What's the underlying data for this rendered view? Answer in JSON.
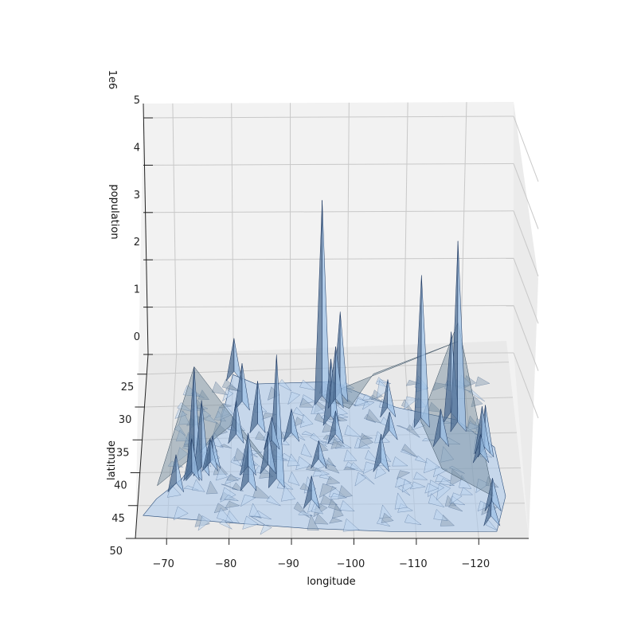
{
  "chart_data": {
    "type": "surface3d",
    "title": "",
    "xlabel": "longitude",
    "ylabel": "latitude",
    "zlabel": "population",
    "z_offset_label": "1e6",
    "xlim": [
      -65,
      -128
    ],
    "ylim": [
      22,
      50
    ],
    "zlim": [
      0,
      5.2
    ],
    "x_ticks": [
      -70,
      -80,
      -90,
      -100,
      -110,
      -120
    ],
    "y_ticks": [
      25,
      30,
      35,
      40,
      45,
      50
    ],
    "z_ticks": [
      0,
      1,
      2,
      3,
      4,
      5
    ],
    "x_tick_labels": [
      "−70",
      "−80",
      "−90",
      "−100",
      "−110",
      "−120"
    ],
    "y_tick_labels": [
      "25",
      "30",
      "35",
      "40",
      "45",
      "50"
    ],
    "z_tick_labels": [
      "0",
      "1",
      "2",
      "3",
      "4",
      "5"
    ],
    "grid": true,
    "surface_color": "#a9c8ec",
    "edge_color": "#2c4f7c",
    "pane_color": "#f2f2f2",
    "peaks": [
      {
        "lon": -74.0,
        "lat": 40.7,
        "z": 2.3
      },
      {
        "lon": -75.2,
        "lat": 40.0,
        "z": 1.5
      },
      {
        "lon": -71.1,
        "lat": 42.4,
        "z": 0.7
      },
      {
        "lon": -77.0,
        "lat": 38.9,
        "z": 0.6
      },
      {
        "lon": -80.2,
        "lat": 25.8,
        "z": 0.8
      },
      {
        "lon": -84.4,
        "lat": 33.7,
        "z": 1.0
      },
      {
        "lon": -87.6,
        "lat": 41.9,
        "z": 2.7
      },
      {
        "lon": -83.0,
        "lat": 42.3,
        "z": 0.9
      },
      {
        "lon": -95.4,
        "lat": 29.8,
        "z": 4.2
      },
      {
        "lon": -96.8,
        "lat": 32.8,
        "z": 1.3
      },
      {
        "lon": -98.5,
        "lat": 29.4,
        "z": 1.8
      },
      {
        "lon": -97.7,
        "lat": 30.3,
        "z": 1.2
      },
      {
        "lon": -93.3,
        "lat": 45.0,
        "z": 0.6
      },
      {
        "lon": -104.9,
        "lat": 39.7,
        "z": 0.7
      },
      {
        "lon": -112.1,
        "lat": 33.4,
        "z": 3.1
      },
      {
        "lon": -117.2,
        "lat": 32.7,
        "z": 1.8
      },
      {
        "lon": -118.2,
        "lat": 34.1,
        "z": 3.9
      },
      {
        "lon": -122.4,
        "lat": 37.8,
        "z": 1.0
      },
      {
        "lon": -121.9,
        "lat": 37.3,
        "z": 0.9
      },
      {
        "lon": -122.3,
        "lat": 47.6,
        "z": 0.5
      },
      {
        "lon": -122.7,
        "lat": 45.5,
        "z": 0.6
      },
      {
        "lon": -115.1,
        "lat": 36.2,
        "z": 0.7
      },
      {
        "lon": -86.8,
        "lat": 36.2,
        "z": 0.6
      },
      {
        "lon": -81.7,
        "lat": 30.3,
        "z": 0.9
      },
      {
        "lon": -90.1,
        "lat": 35.1,
        "z": 0.6
      },
      {
        "lon": -86.2,
        "lat": 39.8,
        "z": 0.8
      },
      {
        "lon": -82.9,
        "lat": 40.0,
        "z": 0.8
      },
      {
        "lon": -80.8,
        "lat": 35.2,
        "z": 0.8
      },
      {
        "lon": -106.5,
        "lat": 31.8,
        "z": 0.7
      },
      {
        "lon": -106.6,
        "lat": 35.1,
        "z": 0.5
      },
      {
        "lon": -97.5,
        "lat": 35.5,
        "z": 0.6
      },
      {
        "lon": -94.6,
        "lat": 39.1,
        "z": 0.5
      },
      {
        "lon": -76.6,
        "lat": 39.3,
        "z": 0.6
      },
      {
        "lon": -73.6,
        "lat": 40.7,
        "z": 0.8
      },
      {
        "lon": -121.5,
        "lat": 38.6,
        "z": 0.5
      }
    ]
  }
}
